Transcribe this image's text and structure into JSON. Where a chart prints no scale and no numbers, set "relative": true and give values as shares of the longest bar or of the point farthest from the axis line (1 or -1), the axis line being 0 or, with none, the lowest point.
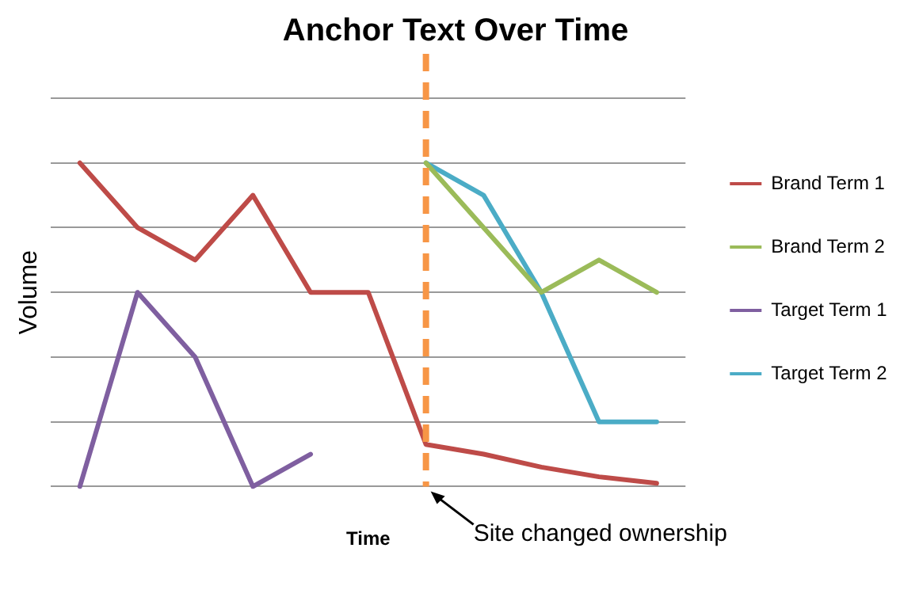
{
  "chart_data": {
    "type": "line",
    "title": "Anchor Text Over Time",
    "xlabel": "Time",
    "ylabel": "Volume",
    "relative": true,
    "grid": "y",
    "legend": "right",
    "marker": "none",
    "line_style": "solid",
    "categories": [
      null,
      null,
      null,
      null,
      null,
      null,
      null,
      null,
      null,
      null,
      null
    ],
    "series": [
      {
        "name": "Brand Term 1",
        "color": "#be4b48",
        "values": [
          1,
          0.8,
          0.7,
          0.9,
          0.6,
          0.6,
          0.13,
          0.1,
          0.06,
          0.03,
          0.01
        ]
      },
      {
        "name": "Brand Term 2",
        "color": "#9bbb59",
        "values": [
          null,
          null,
          null,
          null,
          null,
          null,
          1,
          0.8,
          0.6,
          0.7,
          0.6
        ]
      },
      {
        "name": "Target Term 1",
        "color": "#7f5fa0",
        "values": [
          0,
          0.6,
          0.4,
          0,
          0.1,
          null,
          null,
          null,
          null,
          null,
          null
        ]
      },
      {
        "name": "Target Term 2",
        "color": "#4bacc6",
        "values": [
          null,
          null,
          null,
          null,
          null,
          null,
          1,
          0.9,
          0.6,
          0.2,
          0.2
        ]
      }
    ],
    "annotations": [
      "Site changed ownership"
    ]
  }
}
